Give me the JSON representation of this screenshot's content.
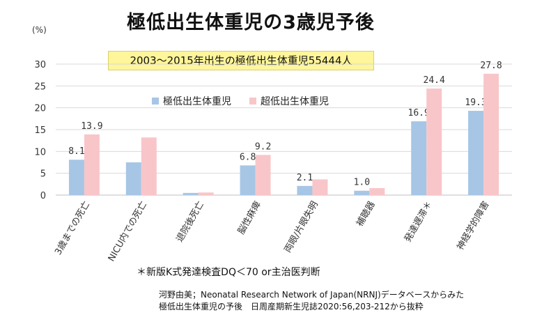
{
  "title": "極低出生体重児の3歳児予後",
  "unit_label": "(%)",
  "subtitle": "2003〜2015年出生の極低出生体重児55444人",
  "footnote": "＊新版K式発達検査DQ＜70 or主治医判断",
  "citation_line1": "河野由美；Neonatal Research Network of Japan(NRNJ)データベースからみた",
  "citation_line2": "極低出生体重児の予後　日周産期新生児誌2020:56,203-212から抜粋",
  "colors": {
    "series1": "#a7c6e6",
    "series2": "#f8c6c9",
    "grid": "#d9d9d9",
    "axis": "#bfbfbf"
  },
  "chart_data": {
    "type": "bar",
    "categories": [
      "3歳までの死亡",
      "NICU内での死亡",
      "退院後死亡",
      "脳性麻痺",
      "両眼/片眼失明",
      "補聴器",
      "発達遅滞＊",
      "神経学的障害"
    ],
    "series": [
      {
        "name": "極低出生体重児",
        "values": [
          8.1,
          7.5,
          0.5,
          6.8,
          2.1,
          1.0,
          16.9,
          19.3
        ]
      },
      {
        "name": "超低出生体重児",
        "values": [
          13.9,
          13.2,
          0.6,
          9.2,
          3.6,
          1.6,
          24.4,
          27.8
        ]
      }
    ],
    "data_labels": [
      [
        "8.1",
        "",
        "",
        "6.8",
        "2.1",
        "1.0",
        "16.9",
        "19.3"
      ],
      [
        "13.9",
        "",
        "",
        "9.2",
        "",
        "",
        "24.4",
        "27.8"
      ]
    ],
    "ylim": [
      0,
      30
    ],
    "yticks": [
      0,
      5,
      10,
      15,
      20,
      25,
      30
    ],
    "grid": true,
    "legend_position": "top-left"
  }
}
